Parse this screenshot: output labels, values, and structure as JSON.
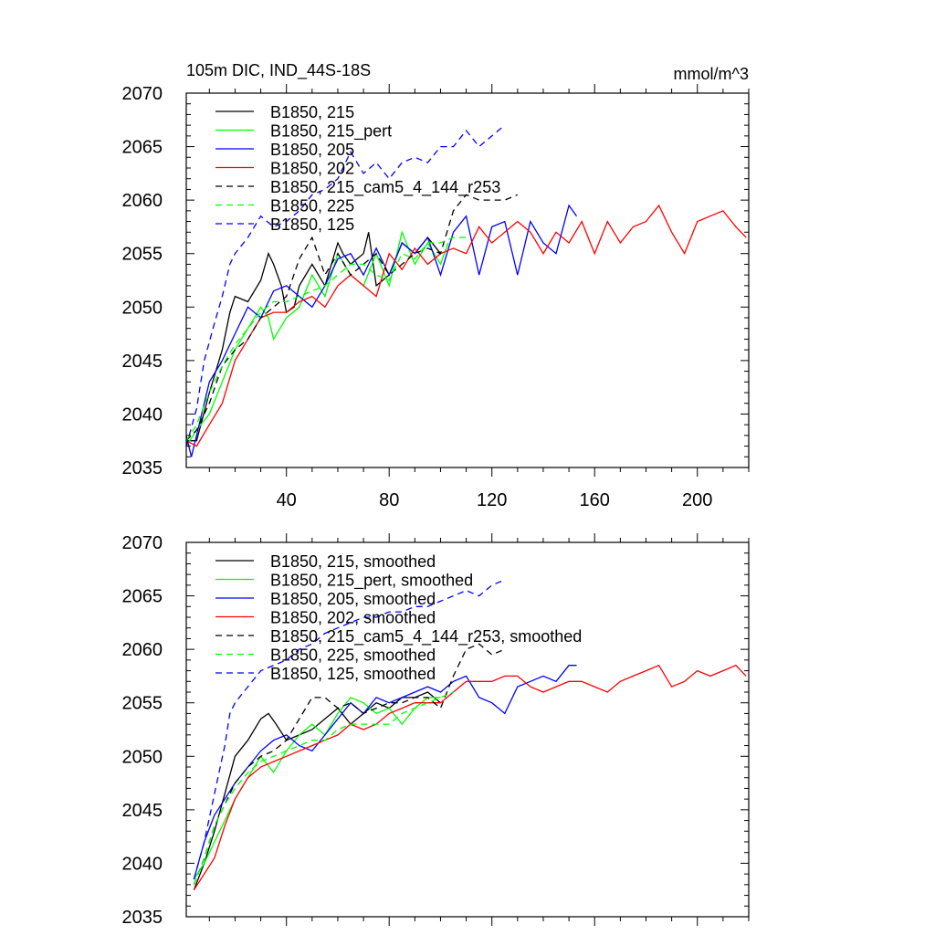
{
  "header": {
    "title": "105m DIC, IND_44S-18S",
    "units": "mmol/m^3"
  },
  "chart_data": [
    {
      "type": "line",
      "panel": "top",
      "title": "105m DIC, IND_44S-18S",
      "units_label": "mmol/m^3",
      "xlabel": "",
      "ylabel": "",
      "xlim": [
        1,
        220
      ],
      "ylim": [
        2035,
        2070
      ],
      "xticks": [
        40,
        80,
        120,
        160,
        200
      ],
      "xtick_labels": [
        "40",
        "80",
        "120",
        "160",
        "200"
      ],
      "show_xtick_labels": true,
      "yticks": [
        2035,
        2040,
        2045,
        2050,
        2055,
        2060,
        2065,
        2070
      ],
      "ytick_labels": [
        "2035",
        "2040",
        "2045",
        "2050",
        "2055",
        "2060",
        "2065",
        "2070"
      ],
      "legend_position": "top-left",
      "series": [
        {
          "name": "B1850, 215",
          "color": "#000000",
          "dash": "solid",
          "x": [
            1,
            5,
            10,
            15,
            18,
            20,
            25,
            30,
            33,
            35,
            38,
            40,
            43,
            45,
            50,
            55,
            60,
            62,
            65,
            70,
            72,
            75,
            80,
            85,
            90,
            95,
            100
          ],
          "y": [
            2037.5,
            2037.5,
            2042,
            2046,
            2049.5,
            2051,
            2050.5,
            2052.5,
            2055,
            2054,
            2052,
            2049.5,
            2050,
            2052,
            2054,
            2052,
            2056,
            2055,
            2054,
            2055,
            2057,
            2052,
            2053,
            2056,
            2055,
            2056.5,
            2055
          ]
        },
        {
          "name": "B1850, 215_pert",
          "color": "#00ff00",
          "dash": "solid",
          "x": [
            1,
            5,
            10,
            15,
            20,
            25,
            30,
            33,
            35,
            40,
            45,
            50,
            55,
            60,
            65,
            70,
            75,
            80,
            85,
            90,
            95,
            100,
            103
          ],
          "y": [
            2037,
            2038.5,
            2040,
            2043,
            2046,
            2048,
            2050,
            2049,
            2047,
            2049,
            2050,
            2053,
            2051,
            2055,
            2053,
            2052,
            2055,
            2052,
            2057,
            2054,
            2056,
            2054,
            2056
          ]
        },
        {
          "name": "B1850, 205",
          "color": "#0000ff",
          "dash": "solid",
          "x": [
            1,
            3,
            5,
            10,
            15,
            20,
            25,
            30,
            35,
            40,
            45,
            50,
            55,
            60,
            65,
            70,
            75,
            80,
            85,
            90,
            95,
            100,
            105,
            110,
            115,
            120,
            125,
            130,
            135,
            140,
            145,
            150,
            153
          ],
          "y": [
            2038,
            2036,
            2038,
            2043,
            2045,
            2047.5,
            2050,
            2049,
            2051.5,
            2052,
            2051,
            2050,
            2052,
            2054.5,
            2055,
            2053,
            2055.5,
            2053,
            2056,
            2055,
            2056.5,
            2053,
            2057,
            2058.5,
            2053,
            2057.5,
            2058,
            2053,
            2058,
            2056,
            2055,
            2059.5,
            2058.5
          ]
        },
        {
          "name": "B1850, 202",
          "color": "#ff0000",
          "dash": "solid",
          "x": [
            1,
            5,
            10,
            15,
            20,
            25,
            30,
            35,
            40,
            45,
            50,
            55,
            60,
            65,
            70,
            75,
            80,
            85,
            90,
            95,
            100,
            105,
            110,
            115,
            120,
            125,
            130,
            135,
            140,
            145,
            150,
            155,
            160,
            165,
            170,
            175,
            180,
            185,
            190,
            195,
            200,
            205,
            210,
            215,
            219
          ],
          "y": [
            2037.5,
            2037,
            2039,
            2041,
            2045,
            2047,
            2049,
            2049.5,
            2049.5,
            2050.5,
            2051,
            2050,
            2052,
            2053,
            2052,
            2051,
            2055,
            2053.5,
            2055.5,
            2054,
            2055,
            2055.5,
            2055,
            2057.5,
            2056,
            2057,
            2058,
            2057,
            2055,
            2057,
            2056,
            2058,
            2055,
            2058,
            2056,
            2057.5,
            2058,
            2059.5,
            2057,
            2055,
            2058,
            2058.5,
            2059,
            2057.5,
            2056.5
          ]
        },
        {
          "name": "B1850, 215_cam5_4_144_r253",
          "color": "#000000",
          "dash": "dashed",
          "x": [
            1,
            5,
            10,
            15,
            20,
            25,
            30,
            35,
            40,
            45,
            50,
            55,
            60,
            65,
            70,
            75,
            80,
            85,
            90,
            95,
            100,
            105,
            110,
            115,
            120,
            125,
            130
          ],
          "y": [
            2037.5,
            2038.5,
            2041,
            2044.5,
            2046,
            2047,
            2049,
            2050,
            2051,
            2054.5,
            2056.5,
            2053,
            2055,
            2053,
            2054,
            2055,
            2053,
            2054,
            2055,
            2055.5,
            2055,
            2059,
            2060.5,
            2060,
            2060,
            2060,
            2060.5
          ]
        },
        {
          "name": "B1850, 225",
          "color": "#00ff00",
          "dash": "dashed",
          "x": [
            1,
            5,
            10,
            15,
            20,
            25,
            30,
            35,
            40,
            45,
            50,
            55,
            60,
            65,
            70,
            75,
            80,
            85,
            90,
            95,
            100,
            105,
            110
          ],
          "y": [
            2037.5,
            2039,
            2042,
            2044.5,
            2046.5,
            2048,
            2049.5,
            2050.5,
            2050.5,
            2051,
            2051.5,
            2052,
            2053,
            2054,
            2054,
            2053,
            2052.5,
            2055,
            2054.5,
            2056,
            2056,
            2056.5,
            2056.5
          ]
        },
        {
          "name": "B1850, 125",
          "color": "#0000ff",
          "dash": "dashed",
          "x": [
            1,
            5,
            8,
            12,
            15,
            18,
            20,
            25,
            30,
            35,
            40,
            45,
            50,
            55,
            60,
            65,
            70,
            75,
            80,
            85,
            90,
            95,
            100,
            105,
            110,
            115,
            120,
            125
          ],
          "y": [
            2037,
            2040.5,
            2045,
            2048.5,
            2051,
            2054,
            2055,
            2056.5,
            2058.5,
            2057.5,
            2058,
            2059,
            2060.5,
            2061,
            2062,
            2064.5,
            2062.5,
            2063.5,
            2062,
            2063.5,
            2064,
            2063.5,
            2065,
            2065,
            2066.5,
            2065,
            2066,
            2067
          ]
        }
      ]
    },
    {
      "type": "line",
      "panel": "bottom",
      "title": "",
      "xlabel": "",
      "ylabel": "",
      "xlim": [
        1,
        220
      ],
      "ylim": [
        2035,
        2070
      ],
      "xticks": [
        40,
        80,
        120,
        160,
        200
      ],
      "show_xtick_labels": false,
      "yticks": [
        2035,
        2040,
        2045,
        2050,
        2055,
        2060,
        2065,
        2070
      ],
      "ytick_labels": [
        "2035",
        "2040",
        "2045",
        "2050",
        "2055",
        "2060",
        "2065",
        "2070"
      ],
      "legend_position": "top-left",
      "series": [
        {
          "name": "B1850, 215, smoothed",
          "color": "#000000",
          "dash": "solid",
          "x": [
            4,
            8,
            12,
            16,
            20,
            25,
            30,
            33,
            36,
            40,
            45,
            50,
            55,
            60,
            65,
            70,
            75,
            80,
            85,
            90,
            95,
            100
          ],
          "y": [
            2037.5,
            2040,
            2043,
            2046.5,
            2050,
            2051.5,
            2053.5,
            2054,
            2053,
            2051.5,
            2052,
            2052.5,
            2053.5,
            2054.5,
            2053,
            2054,
            2055,
            2054.5,
            2055.5,
            2055.5,
            2056,
            2055
          ]
        },
        {
          "name": "B1850, 215_pert, smoothed",
          "color": "#00ff00",
          "dash": "solid",
          "x": [
            4,
            8,
            12,
            16,
            20,
            25,
            30,
            35,
            40,
            45,
            50,
            55,
            60,
            65,
            70,
            75,
            80,
            85,
            90,
            95,
            100
          ],
          "y": [
            2038.5,
            2040,
            2042,
            2044,
            2046,
            2048,
            2050,
            2048.5,
            2050.5,
            2052,
            2053,
            2052,
            2054,
            2055.5,
            2055,
            2054,
            2054.5,
            2053,
            2054.5,
            2055.5,
            2055.5
          ]
        },
        {
          "name": "B1850, 205, smoothed",
          "color": "#0000ff",
          "dash": "solid",
          "x": [
            4,
            8,
            12,
            16,
            20,
            25,
            30,
            35,
            40,
            45,
            50,
            55,
            60,
            65,
            70,
            75,
            80,
            85,
            90,
            95,
            100,
            105,
            110,
            115,
            120,
            125,
            130,
            135,
            140,
            145,
            150,
            153
          ],
          "y": [
            2038.5,
            2042,
            2044.5,
            2046,
            2047.5,
            2049,
            2050.5,
            2051.5,
            2052,
            2051,
            2050.5,
            2052,
            2053.5,
            2055,
            2054,
            2055.5,
            2055,
            2055.5,
            2056,
            2056.5,
            2056,
            2057,
            2057.5,
            2055.5,
            2055,
            2054,
            2056.5,
            2057,
            2057.5,
            2057,
            2058.5,
            2058.5
          ]
        },
        {
          "name": "B1850, 202, smoothed",
          "color": "#ff0000",
          "dash": "solid",
          "x": [
            4,
            8,
            12,
            16,
            20,
            25,
            30,
            35,
            40,
            45,
            50,
            55,
            60,
            65,
            70,
            75,
            80,
            85,
            90,
            95,
            100,
            105,
            110,
            115,
            120,
            125,
            130,
            135,
            140,
            145,
            150,
            155,
            160,
            165,
            170,
            175,
            180,
            185,
            190,
            195,
            200,
            205,
            210,
            215,
            219
          ],
          "y": [
            2037.5,
            2039,
            2040.5,
            2043.5,
            2046,
            2048,
            2049,
            2049.5,
            2050,
            2050.5,
            2051,
            2051.5,
            2052,
            2053,
            2052.5,
            2053,
            2054,
            2054.5,
            2055,
            2055,
            2055,
            2056,
            2057,
            2057,
            2057,
            2057.5,
            2057.5,
            2056.5,
            2056,
            2056.5,
            2057,
            2057,
            2056.5,
            2056,
            2057,
            2057.5,
            2058,
            2058.5,
            2056.5,
            2057,
            2058,
            2057.5,
            2058,
            2058.5,
            2057.5
          ]
        },
        {
          "name": "B1850, 215_cam5_4_144_r253, smoothed",
          "color": "#000000",
          "dash": "dashed",
          "x": [
            4,
            8,
            12,
            16,
            20,
            25,
            30,
            35,
            40,
            45,
            50,
            55,
            60,
            65,
            70,
            75,
            80,
            85,
            90,
            95,
            100,
            105,
            110,
            115,
            120,
            125
          ],
          "y": [
            2038,
            2040.5,
            2043.5,
            2045.5,
            2047.5,
            2049,
            2050,
            2050.5,
            2051.5,
            2053.5,
            2055.5,
            2055.5,
            2054.5,
            2055,
            2054,
            2054.5,
            2055,
            2055,
            2055.5,
            2055.5,
            2054.5,
            2057.5,
            2060,
            2060.5,
            2059.5,
            2060
          ]
        },
        {
          "name": "B1850, 225, smoothed",
          "color": "#00ff00",
          "dash": "dashed",
          "x": [
            4,
            8,
            12,
            16,
            20,
            25,
            30,
            35,
            40,
            45,
            50,
            55,
            60,
            65,
            70,
            75,
            80,
            85,
            90,
            95,
            100,
            105
          ],
          "y": [
            2038,
            2040.5,
            2043.5,
            2045.5,
            2047,
            2048.5,
            2049.5,
            2050,
            2050.5,
            2051,
            2051.5,
            2051.5,
            2052.5,
            2053,
            2053,
            2053,
            2053,
            2054,
            2054.5,
            2055,
            2055.5,
            2056
          ]
        },
        {
          "name": "B1850, 125, smoothed",
          "color": "#0000ff",
          "dash": "dashed",
          "x": [
            4,
            8,
            12,
            16,
            18,
            20,
            25,
            30,
            35,
            40,
            45,
            50,
            55,
            60,
            65,
            70,
            75,
            80,
            85,
            90,
            95,
            100,
            105,
            110,
            115,
            120,
            125
          ],
          "y": [
            2038.5,
            2042,
            2046.5,
            2051,
            2054,
            2055,
            2056.5,
            2058,
            2058.5,
            2059,
            2060,
            2060.5,
            2061.5,
            2062,
            2062.5,
            2063,
            2063,
            2063.5,
            2063.5,
            2064,
            2064,
            2064.5,
            2065,
            2065.5,
            2065,
            2066,
            2066.5
          ]
        }
      ]
    }
  ]
}
